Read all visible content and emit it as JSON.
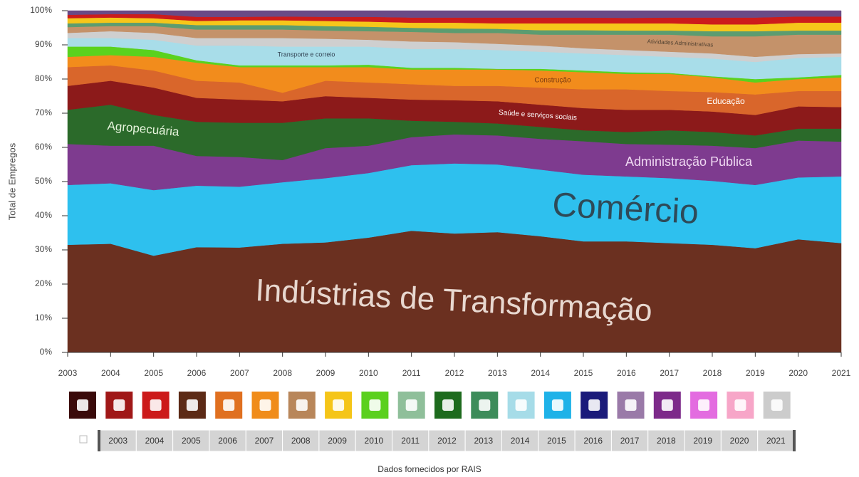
{
  "chart_data": {
    "type": "stacked_area",
    "y_axis_label": "Total de Empregos",
    "source": "Dados fornecidos por RAIS",
    "x": [
      2003,
      2004,
      2005,
      2006,
      2007,
      2008,
      2009,
      2010,
      2011,
      2012,
      2013,
      2014,
      2015,
      2016,
      2017,
      2018,
      2019,
      2020,
      2021
    ],
    "xlim": [
      2003,
      2021
    ],
    "xticks": [
      2003,
      2004,
      2005,
      2006,
      2007,
      2008,
      2009,
      2010,
      2011,
      2012,
      2013,
      2014,
      2015,
      2016,
      2017,
      2018,
      2019,
      2020,
      2021
    ],
    "ylim": [
      0,
      100
    ],
    "yticks": [
      {
        "value": 0,
        "label": "0%"
      },
      {
        "value": 10,
        "label": "10%"
      },
      {
        "value": 20,
        "label": "20%"
      },
      {
        "value": 30,
        "label": "30%"
      },
      {
        "value": 40,
        "label": "40%"
      },
      {
        "value": 50,
        "label": "50%"
      },
      {
        "value": 60,
        "label": "60%"
      },
      {
        "value": 70,
        "label": "70%"
      },
      {
        "value": 80,
        "label": "80%"
      },
      {
        "value": 90,
        "label": "90%"
      },
      {
        "value": 100,
        "label": "100%"
      }
    ],
    "grid": false,
    "series": [
      {
        "name": "Indústrias de Transformação",
        "color": "#6b3020",
        "values": [
          31.5,
          31.8,
          28.3,
          30.8,
          30.7,
          31.8,
          32.2,
          33.6,
          35.6,
          34.8,
          35.2,
          34,
          32.5,
          32.5,
          32,
          31.5,
          30.5,
          33.1,
          32
        ]
      },
      {
        "name": "Comércio",
        "color": "#2ec0ee",
        "values": [
          17.5,
          17.7,
          19.2,
          18,
          17.8,
          18,
          18.8,
          18.9,
          19.2,
          20.5,
          19.8,
          19.5,
          19.5,
          19,
          19,
          18.7,
          18.5,
          18.1,
          19.5
        ]
      },
      {
        "name": "Administração Pública",
        "color": "#7e3b8f",
        "values": [
          12,
          11,
          13,
          8.7,
          8.7,
          6.5,
          8.8,
          8,
          8.2,
          8.5,
          8.5,
          9,
          9.8,
          9.5,
          9.8,
          10.3,
          10.8,
          10.8,
          10.2
        ]
      },
      {
        "name": "Agropecuária",
        "color": "#2b6a2a",
        "values": [
          10,
          12,
          9,
          10,
          10,
          10.9,
          8.7,
          8,
          4.8,
          3.7,
          3.5,
          3.5,
          3.2,
          3.5,
          4.2,
          4,
          3.7,
          3.5,
          3.8
        ]
      },
      {
        "name": "Saúde e serviços sociais",
        "color": "#8c1a1a",
        "values": [
          7,
          7,
          8,
          7,
          6.8,
          6.3,
          6.5,
          6,
          6.2,
          6.3,
          6.5,
          6.5,
          6.5,
          6.5,
          6,
          6,
          6,
          6.5,
          6.3
        ]
      },
      {
        "name": "Educação",
        "color": "#d9662b",
        "values": [
          5.5,
          4.5,
          5,
          5,
          5,
          2.5,
          4.5,
          4.5,
          4.5,
          4.2,
          4.5,
          5,
          5.5,
          6,
          5.5,
          5.7,
          6,
          4.5,
          4.7
        ]
      },
      {
        "name": "Construção",
        "color": "#f28c1c",
        "values": [
          3,
          3,
          4,
          5.3,
          4.5,
          7.5,
          4,
          4.5,
          4.3,
          4.8,
          4.8,
          5,
          5,
          4.5,
          5,
          4.3,
          3.5,
          3.5,
          4
        ]
      },
      {
        "color": "#5ad21e",
        "values": [
          3,
          2.5,
          2,
          0.7,
          0.5,
          0.5,
          0.5,
          0.7,
          0.5,
          0.5,
          0.2,
          0.5,
          0.5,
          0.5,
          0.3,
          0.3,
          1,
          0.5,
          0.7
        ]
      },
      {
        "name": "Transporte e correio",
        "color": "#a8dde9",
        "values": [
          2.5,
          2.5,
          3,
          4.3,
          5.8,
          5.5,
          5.5,
          5.3,
          5.5,
          5.5,
          5.5,
          5,
          5,
          5,
          4.7,
          5.2,
          5,
          5.7,
          5.3
        ]
      },
      {
        "color": "#cfcfcf",
        "values": [
          1.5,
          2,
          2,
          2.2,
          2.2,
          2.5,
          2.3,
          2,
          2.2,
          2,
          1.8,
          1.8,
          1.5,
          1.5,
          1.5,
          1.5,
          1.5,
          1.1,
          1
        ]
      },
      {
        "name": "Atividades Administrativas",
        "color": "#c4926a",
        "values": [
          1.7,
          1.5,
          2,
          2.5,
          2.5,
          2.5,
          2.4,
          2.5,
          2.8,
          2.7,
          3.2,
          3.2,
          4,
          4.5,
          5,
          5,
          6,
          5.7,
          5.5
        ]
      },
      {
        "color": "#5c9c70",
        "values": [
          1.1,
          1,
          1,
          1.3,
          1.3,
          1.3,
          1.3,
          1.3,
          1.2,
          1.3,
          1.2,
          1.3,
          1.3,
          1.2,
          1.2,
          1.5,
          1.5,
          1.2,
          1.2
        ]
      },
      {
        "color": "#f6c61a",
        "values": [
          1.5,
          1.5,
          1.3,
          1.2,
          1.4,
          1.4,
          1.5,
          1.5,
          1.5,
          1.7,
          1.6,
          2,
          2,
          2.1,
          2.1,
          2,
          2,
          2.3,
          2.3
        ]
      },
      {
        "color": "#cc1c1c",
        "values": [
          1,
          1,
          1.2,
          1.2,
          1,
          1.1,
          1.2,
          1.4,
          1.5,
          1.5,
          1.7,
          1.7,
          1.7,
          1.6,
          1.7,
          2,
          2,
          1.8,
          1.8
        ]
      },
      {
        "color": "#6a4a86",
        "values": [
          1.2,
          1,
          1,
          1.8,
          1.8,
          1.7,
          1.8,
          1.8,
          2,
          2,
          2,
          2,
          2,
          2.1,
          2,
          2,
          2,
          1.7,
          1.7
        ]
      }
    ]
  }
}
